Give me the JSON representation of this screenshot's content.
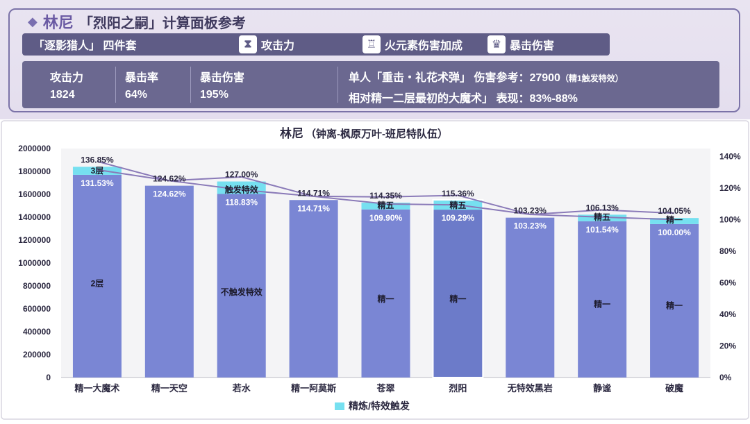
{
  "header": {
    "hero": "林尼",
    "title_rest": "「烈阳之嗣」计算面板参考",
    "set_name": "「逐影猎人」 四件套",
    "slots": [
      {
        "icon": "hourglass-icon",
        "glyph": "⧗",
        "label": "攻击力"
      },
      {
        "icon": "goblet-icon",
        "glyph": "♖",
        "label": "火元素伤害加成"
      },
      {
        "icon": "crown-icon",
        "glyph": "♛",
        "label": "暴击伤害"
      }
    ],
    "stats": [
      {
        "label": "攻击力",
        "value": "1824"
      },
      {
        "label": "暴击率",
        "value": "64%"
      },
      {
        "label": "暴击伤害",
        "value": "195%"
      }
    ],
    "damage_line_1": "单人「重击・礼花术弹」 伤害参考：27900",
    "damage_note": "（精1触发特效）",
    "damage_line_2": "相对精一二层最初的大魔术」 表现：83%-88%"
  },
  "chart_data": {
    "type": "bar",
    "title": "林尼",
    "subtitle": "（钟离-枫原万叶-班尼特队伍）",
    "categories": [
      "精一大魔术",
      "精一天空",
      "若水",
      "精一阿莫斯",
      "苍翠",
      "烈阳",
      "无特效黑岩",
      "静谧",
      "破魔"
    ],
    "ylim": [
      0,
      2000000
    ],
    "yticks": [
      "0",
      "200000",
      "400000",
      "600000",
      "800000",
      "1000000",
      "1200000",
      "1400000",
      "1600000",
      "1800000",
      "2000000"
    ],
    "y2lim": [
      0,
      1.45
    ],
    "y2ticks": [
      "0%",
      "20%",
      "40%",
      "60%",
      "80%",
      "100%",
      "120%",
      "140%"
    ],
    "series": [
      {
        "values": [
          1770000,
          1675000,
          1603000,
          1550000,
          1468000,
          1466000,
          1396000,
          1365000,
          1340000
        ]
      },
      {
        "name": "精炼/特效触发",
        "values": [
          70000,
          0,
          109000,
          0,
          59000,
          80000,
          0,
          57000,
          53000
        ]
      }
    ],
    "low_pct": [
      "131.53%",
      "124.62%",
      "118.83%",
      "114.71%",
      "109.90%",
      "109.29%",
      "103.23%",
      "101.54%",
      "100.00%"
    ],
    "high_pct": [
      "136.85%",
      "124.62%",
      "127.00%",
      "114.71%",
      "114.35%",
      "115.36%",
      "103.23%",
      "106.13%",
      "104.05%"
    ],
    "top_labels": [
      "3层",
      "",
      "触发特效",
      "",
      "精五",
      "精五",
      "",
      "精五",
      "精一"
    ],
    "base_labels": [
      "2层",
      "",
      "不触发特效",
      "",
      "精一",
      "精一",
      "",
      "精一",
      "精一"
    ],
    "line_low": [
      1.3153,
      1.2462,
      1.1883,
      1.1471,
      1.099,
      1.0929,
      1.0323,
      1.0154,
      1.0
    ],
    "line_high": [
      1.3685,
      1.2462,
      1.27,
      1.1471,
      1.1435,
      1.1536,
      1.0323,
      1.0613,
      1.0405
    ],
    "legend": "精炼/特效触发",
    "highlight_index": 5,
    "colors": {
      "bar": "#7a86d4",
      "bar_highlight": "#6c7bc9",
      "trigger": "#76e0f0",
      "line": "#8a7ab8",
      "panel": "#f4f4f6"
    }
  }
}
